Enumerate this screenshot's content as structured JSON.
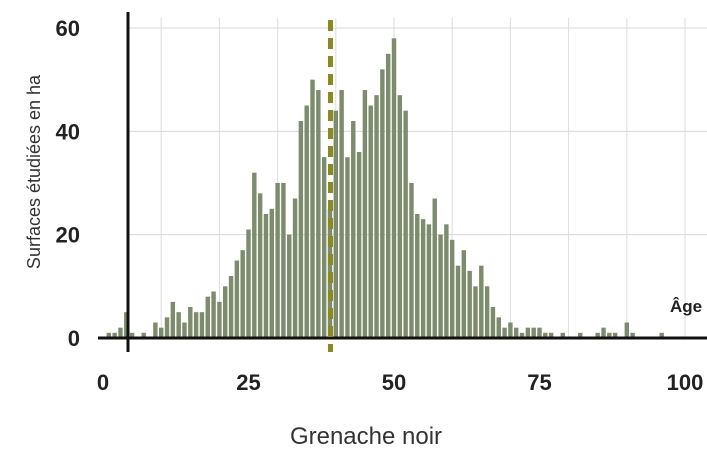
{
  "chart_data": {
    "type": "bar",
    "title": "",
    "xlabel": "Grenache noir",
    "ylabel": "Surfaces étudiées en ha",
    "annotation": "Âge",
    "xlim": [
      -2,
      103
    ],
    "ylim": [
      0,
      60
    ],
    "x_ticks": [
      "0",
      "25",
      "50",
      "75",
      "100"
    ],
    "y_ticks": [
      "0",
      "20",
      "40",
      "60"
    ],
    "grid": true,
    "bar_color": "#7c8c6c",
    "reference_line": {
      "x": 39,
      "color": "#8a8a20"
    },
    "x": [
      1,
      2,
      3,
      4,
      5,
      6,
      7,
      8,
      9,
      10,
      11,
      12,
      13,
      14,
      15,
      16,
      17,
      18,
      19,
      20,
      21,
      22,
      23,
      24,
      25,
      26,
      27,
      28,
      29,
      30,
      31,
      32,
      33,
      34,
      35,
      36,
      37,
      38,
      39,
      40,
      41,
      42,
      43,
      44,
      45,
      46,
      47,
      48,
      49,
      50,
      51,
      52,
      53,
      54,
      55,
      56,
      57,
      58,
      59,
      60,
      61,
      62,
      63,
      64,
      65,
      66,
      67,
      68,
      69,
      70,
      71,
      72,
      73,
      74,
      75,
      76,
      77,
      78,
      79,
      80,
      81,
      82,
      83,
      84,
      85,
      86,
      87,
      88,
      89,
      90,
      91,
      92,
      93,
      94,
      95,
      96,
      97,
      98,
      99,
      100
    ],
    "values": [
      1,
      1,
      2,
      5,
      1,
      0,
      1,
      0,
      3,
      2,
      4,
      7,
      5,
      3,
      6,
      5,
      5,
      8,
      9,
      7,
      10,
      12,
      15,
      17,
      21,
      32,
      28,
      24,
      25,
      30,
      30,
      20,
      27,
      42,
      45,
      50,
      48,
      35,
      25,
      44,
      48,
      35,
      42,
      36,
      48,
      45,
      47,
      52,
      55,
      58,
      47,
      44,
      30,
      24,
      23,
      22,
      27,
      20,
      22,
      19,
      14,
      17,
      13,
      10,
      14,
      10,
      6,
      4,
      2,
      3,
      2,
      1,
      2,
      2,
      2,
      1,
      1,
      0,
      1,
      0,
      0,
      1,
      0,
      0,
      1,
      2,
      1,
      1,
      0,
      3,
      1,
      0,
      0,
      0,
      0,
      1,
      0,
      0,
      0,
      0
    ]
  }
}
